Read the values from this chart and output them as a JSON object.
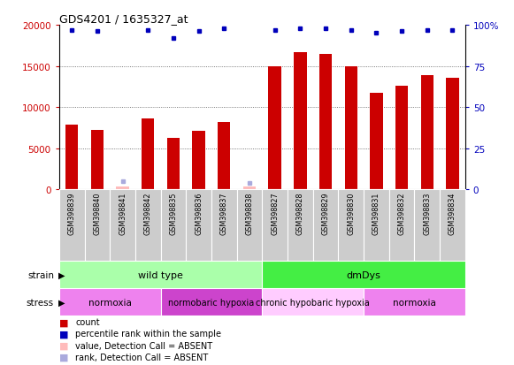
{
  "title": "GDS4201 / 1635327_at",
  "samples": [
    "GSM398839",
    "GSM398840",
    "GSM398841",
    "GSM398842",
    "GSM398835",
    "GSM398836",
    "GSM398837",
    "GSM398838",
    "GSM398827",
    "GSM398828",
    "GSM398829",
    "GSM398830",
    "GSM398831",
    "GSM398832",
    "GSM398833",
    "GSM398834"
  ],
  "counts": [
    7900,
    7200,
    300,
    8600,
    6300,
    7100,
    8200,
    300,
    15000,
    16700,
    16500,
    15000,
    11700,
    12600,
    13900,
    13600
  ],
  "absent_count_indices": [
    2,
    7
  ],
  "percentile_ranks": [
    97,
    96,
    5,
    97,
    92,
    96,
    98,
    4,
    97,
    98,
    98,
    97,
    95,
    96,
    97,
    97
  ],
  "absent_rank_indices": [
    2,
    7
  ],
  "ylim_left": [
    0,
    20000
  ],
  "ylim_right": [
    0,
    100
  ],
  "yticks_left": [
    0,
    5000,
    10000,
    15000,
    20000
  ],
  "yticks_right": [
    0,
    25,
    50,
    75,
    100
  ],
  "ytick_labels_left": [
    "0",
    "5000",
    "10000",
    "15000",
    "20000"
  ],
  "ytick_labels_right": [
    "0",
    "25",
    "50",
    "75",
    "100%"
  ],
  "bar_color": "#cc0000",
  "absent_bar_color": "#ffbbbb",
  "dot_color": "#0000bb",
  "absent_dot_color": "#aaaadd",
  "strain_groups": [
    {
      "label": "wild type",
      "start": 0,
      "end": 8,
      "color": "#aaffaa"
    },
    {
      "label": "dmDys",
      "start": 8,
      "end": 16,
      "color": "#44ee44"
    }
  ],
  "stress_groups": [
    {
      "label": "normoxia",
      "start": 0,
      "end": 4,
      "color": "#ee82ee"
    },
    {
      "label": "normobaric hypoxia",
      "start": 4,
      "end": 8,
      "color": "#cc44cc"
    },
    {
      "label": "chronic hypobaric hypoxia",
      "start": 8,
      "end": 12,
      "color": "#ffccff"
    },
    {
      "label": "normoxia",
      "start": 12,
      "end": 16,
      "color": "#ee82ee"
    }
  ],
  "tick_label_color_left": "#cc0000",
  "tick_label_color_right": "#0000bb",
  "bar_width": 0.5,
  "cell_color": "#cccccc",
  "legend_items": [
    {
      "color": "#cc0000",
      "label": "count"
    },
    {
      "color": "#0000bb",
      "label": "percentile rank within the sample"
    },
    {
      "color": "#ffbbbb",
      "label": "value, Detection Call = ABSENT"
    },
    {
      "color": "#aaaadd",
      "label": "rank, Detection Call = ABSENT"
    }
  ]
}
